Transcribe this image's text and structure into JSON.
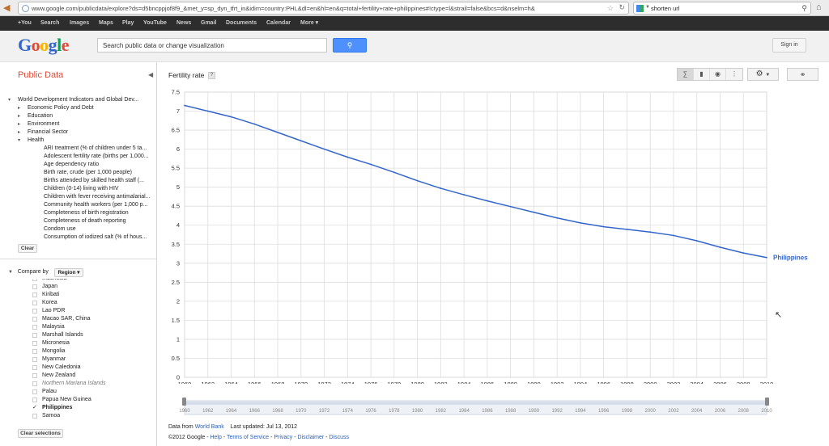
{
  "browser": {
    "url": "www.google.com/publicdata/explore?ds=d5bncppjof8f9_&met_y=sp_dyn_tfrt_in&idim=country:PHL&dl=en&hl=en&q=total+fertility+rate+philippines#!ctype=l&strail=false&bcs=d&nselm=h&",
    "search_text": "shorten url"
  },
  "gbar": [
    "+You",
    "Search",
    "Images",
    "Maps",
    "Play",
    "YouTube",
    "News",
    "Gmail",
    "Documents",
    "Calendar",
    "More ▾"
  ],
  "header": {
    "logo": "Google",
    "search_placeholder": "Search public data or change visualization",
    "signin": "Sign in"
  },
  "left": {
    "title": "Public Data",
    "tree": [
      {
        "label": "World Development Indicators and Global Dev...",
        "level": 0,
        "state": "open"
      },
      {
        "label": "Economic Policy and Debt",
        "level": 1,
        "state": "closed"
      },
      {
        "label": "Education",
        "level": 1,
        "state": "closed"
      },
      {
        "label": "Environment",
        "level": 1,
        "state": "closed"
      },
      {
        "label": "Financial Sector",
        "level": 1,
        "state": "closed"
      },
      {
        "label": "Health",
        "level": 1,
        "state": "open"
      },
      {
        "label": "ARI treatment (% of children under 5 ta...",
        "level": 2,
        "state": "leaf"
      },
      {
        "label": "Adolescent fertility rate (births per 1,000...",
        "level": 2,
        "state": "leaf"
      },
      {
        "label": "Age dependency ratio",
        "level": 2,
        "state": "leaf"
      },
      {
        "label": "Birth rate, crude (per 1,000 people)",
        "level": 2,
        "state": "leaf"
      },
      {
        "label": "Births attended by skilled health staff (...",
        "level": 2,
        "state": "leaf"
      },
      {
        "label": "Children (0-14) living with HIV",
        "level": 2,
        "state": "leaf"
      },
      {
        "label": "Children with fever receiving antimalarial...",
        "level": 2,
        "state": "leaf"
      },
      {
        "label": "Community health workers (per 1,000 p...",
        "level": 2,
        "state": "leaf"
      },
      {
        "label": "Completeness of birth registration",
        "level": 2,
        "state": "leaf"
      },
      {
        "label": "Completeness of death reporting",
        "level": 2,
        "state": "leaf"
      },
      {
        "label": "Condom use",
        "level": 2,
        "state": "leaf"
      },
      {
        "label": "Consumption of iodized salt (% of hous...",
        "level": 2,
        "state": "leaf"
      }
    ],
    "clear": "Clear",
    "compare_by": "Compare by",
    "region": "Region ▾",
    "countries": [
      {
        "name": "Indonesia",
        "checked": false,
        "dim": false
      },
      {
        "name": "Japan",
        "checked": false,
        "dim": false
      },
      {
        "name": "Kiribati",
        "checked": false,
        "dim": false
      },
      {
        "name": "Korea",
        "checked": false,
        "dim": false
      },
      {
        "name": "Lao PDR",
        "checked": false,
        "dim": false
      },
      {
        "name": "Macao SAR, China",
        "checked": false,
        "dim": false
      },
      {
        "name": "Malaysia",
        "checked": false,
        "dim": false
      },
      {
        "name": "Marshall Islands",
        "checked": false,
        "dim": false
      },
      {
        "name": "Micronesia",
        "checked": false,
        "dim": false
      },
      {
        "name": "Mongolia",
        "checked": false,
        "dim": false
      },
      {
        "name": "Myanmar",
        "checked": false,
        "dim": false
      },
      {
        "name": "New Caledonia",
        "checked": false,
        "dim": false
      },
      {
        "name": "New Zealand",
        "checked": false,
        "dim": false
      },
      {
        "name": "Northern Mariana Islands",
        "checked": false,
        "dim": true
      },
      {
        "name": "Palau",
        "checked": false,
        "dim": false
      },
      {
        "name": "Papua New Guinea",
        "checked": false,
        "dim": false
      },
      {
        "name": "Philippines",
        "checked": true,
        "dim": false
      },
      {
        "name": "Samoa",
        "checked": false,
        "dim": false
      }
    ],
    "clear_selections": "Clear selections"
  },
  "main": {
    "metric_title": "Fertility rate",
    "help": "?",
    "vis_icons": [
      "line-chart-icon",
      "bar-chart-icon",
      "map-icon",
      "scatter-icon"
    ],
    "data_from": "Data from",
    "source": "World Bank",
    "last_updated": "Last updated: Jul 13, 2012",
    "copyright": "©2012 Google",
    "footer_links": [
      "Help",
      "Terms of Service",
      "Privacy",
      "Disclaimer",
      "Discuss"
    ],
    "colors": {
      "series": "#3366cc",
      "grid": "#dddddd",
      "label": "#3366cc"
    }
  },
  "chart_data": {
    "type": "line",
    "title": "Fertility rate",
    "x": [
      1960,
      1962,
      1964,
      1966,
      1968,
      1970,
      1972,
      1974,
      1976,
      1978,
      1980,
      1982,
      1984,
      1986,
      1988,
      1990,
      1992,
      1994,
      1996,
      1998,
      2000,
      2002,
      2004,
      2006,
      2008,
      2010
    ],
    "series": [
      {
        "name": "Philippines",
        "values": [
          7.15,
          7.0,
          6.85,
          6.66,
          6.44,
          6.22,
          6.0,
          5.79,
          5.6,
          5.39,
          5.17,
          4.97,
          4.8,
          4.64,
          4.49,
          4.34,
          4.19,
          4.06,
          3.96,
          3.89,
          3.82,
          3.73,
          3.59,
          3.42,
          3.27,
          3.15
        ]
      }
    ],
    "ylim": [
      0,
      7.5
    ],
    "yticks": [
      "0",
      "0.5",
      "1",
      "1.5",
      "2",
      "2.5",
      "3",
      "3.5",
      "4",
      "4.5",
      "5",
      "5.5",
      "6",
      "6.5",
      "7",
      "7.5"
    ],
    "xticks": [
      "1960",
      "1962",
      "1964",
      "1966",
      "1968",
      "1970",
      "1972",
      "1974",
      "1976",
      "1978",
      "1980",
      "1982",
      "1984",
      "1986",
      "1988",
      "1990",
      "1992",
      "1994",
      "1996",
      "1998",
      "2000",
      "2002",
      "2004",
      "2006",
      "2008",
      "2010"
    ],
    "grid": true
  }
}
